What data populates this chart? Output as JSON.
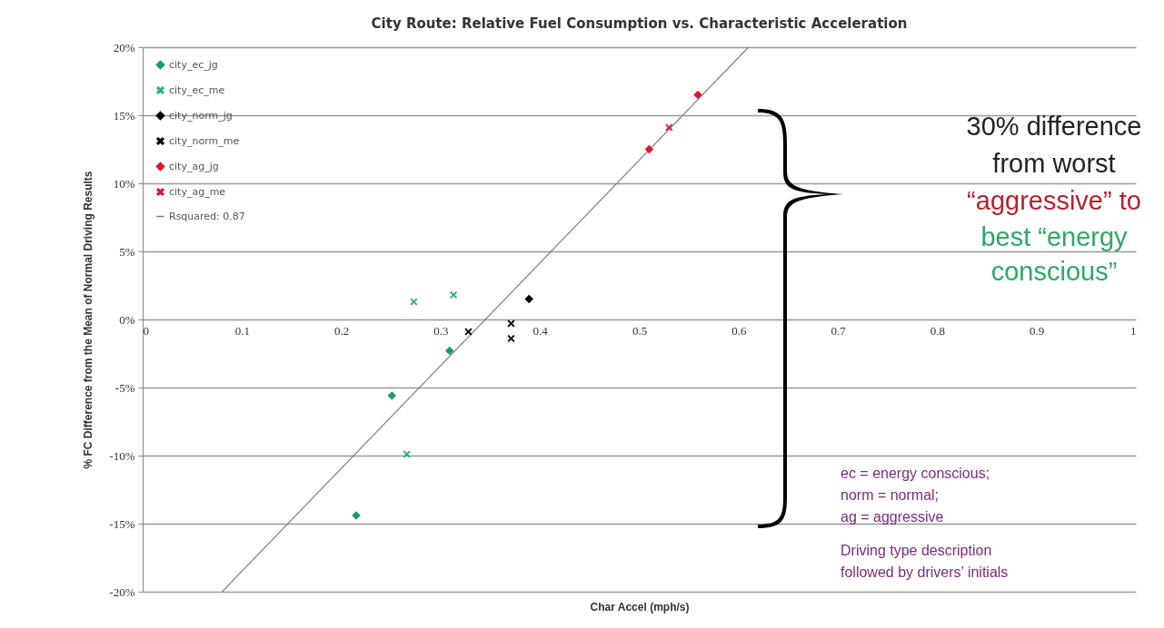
{
  "chart_data": {
    "type": "scatter",
    "title": "City Route:  Relative Fuel Consumption vs. Characteristic Acceleration",
    "xlabel": "Char Accel (mph/s)",
    "ylabel": "% FC Difference from the Mean of Normal Driving Results",
    "series": [
      {
        "name": "city_ec_jg",
        "color": "#1a9a6a",
        "marker": "diamond",
        "x": [
          0.309,
          0.251,
          0.215
        ],
        "values": [
          -2.3,
          -5.6,
          -14.4
        ]
      },
      {
        "name": "city_ec_me",
        "color": "#2ab07a",
        "marker": "cross",
        "x": [
          0.273,
          0.313,
          0.266
        ],
        "values": [
          1.3,
          1.8,
          -9.9
        ]
      },
      {
        "name": "city_norm_jg",
        "color": "#000000",
        "marker": "diamond",
        "x": [
          0.389
        ],
        "values": [
          1.5
        ]
      },
      {
        "name": "city_norm_me",
        "color": "#000000",
        "marker": "cross",
        "x": [
          0.328,
          0.371,
          0.371
        ],
        "values": [
          -0.9,
          -0.3,
          -1.4
        ]
      },
      {
        "name": "city_ag_jg",
        "color": "#e8112d",
        "marker": "diamond",
        "x": [
          0.51,
          0.559
        ],
        "values": [
          12.5,
          16.5
        ]
      },
      {
        "name": "city_ag_me",
        "color": "#e8112d",
        "marker": "cross",
        "x": [
          0.53
        ],
        "values": [
          14.1
        ]
      },
      {
        "name": "Rsquared: 0.87",
        "type": "line",
        "color": "#7f7f7f",
        "x": [
          0.08,
          0.61
        ],
        "values": [
          -20,
          20
        ]
      }
    ],
    "xlim": [
      0,
      1
    ],
    "xticks": [
      0,
      0.1,
      0.2,
      0.3,
      0.4,
      0.5,
      0.6,
      0.7,
      0.8,
      0.9,
      1
    ],
    "ylim": [
      -20,
      20
    ],
    "yticks": [
      {
        "value": -20,
        "label": "-20%"
      },
      {
        "value": -15,
        "label": "-15%"
      },
      {
        "value": -10,
        "label": "-10%"
      },
      {
        "value": -5,
        "label": "-5%"
      },
      {
        "value": 0,
        "label": "0%"
      },
      {
        "value": 5,
        "label": "5%"
      },
      {
        "value": 10,
        "label": "10%"
      },
      {
        "value": 15,
        "label": "15%"
      },
      {
        "value": 20,
        "label": "20%"
      }
    ],
    "grid": "y",
    "legend": "top left",
    "annotations": [
      "30% difference",
      "from worst",
      "“aggressive” to",
      "best “energy",
      "conscious”",
      "ec = energy conscious;",
      "norm = normal;",
      "ag = aggressive",
      "Driving type description",
      "followed by drivers’ initials"
    ]
  }
}
